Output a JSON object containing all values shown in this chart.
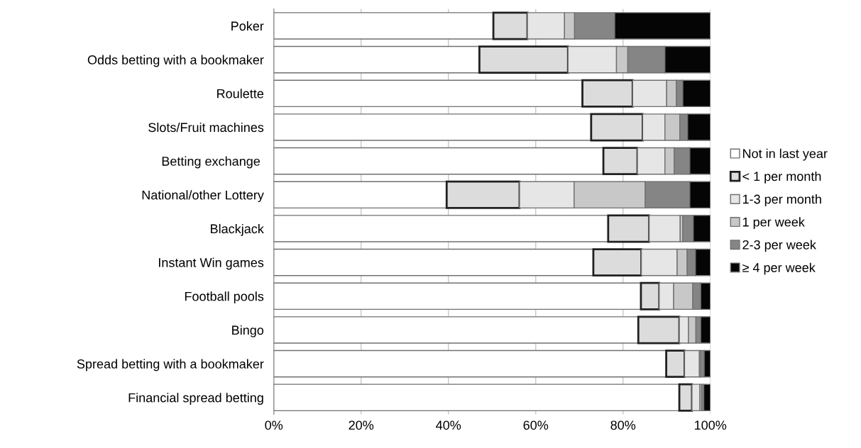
{
  "chart_data": {
    "type": "bar",
    "orientation": "horizontal",
    "stacked": true,
    "categories": [
      "Poker",
      "Odds betting with a bookmaker",
      "Roulette",
      "Slots/Fruit machines",
      "Betting exchange ",
      "National/other Lottery",
      "Blackjack",
      "Instant Win games",
      "Football pools",
      "Bingo",
      "Spread betting with a bookmaker",
      "Financial spread betting"
    ],
    "series": [
      {
        "name": "Not in last year",
        "color": "#ffffff",
        "values": [
          50.3,
          47.1,
          70.7,
          72.7,
          75.5,
          39.6,
          76.6,
          73.2,
          84.1,
          83.5,
          89.9,
          92.9
        ]
      },
      {
        "name": "< 1 per month",
        "color": "#dcdcdc",
        "values": [
          7.8,
          20.3,
          11.5,
          11.8,
          7.8,
          16.7,
          9.4,
          11.0,
          4.2,
          9.4,
          4.2,
          2.9
        ]
      },
      {
        "name": "1-3 per month",
        "color": "#e6e6e6",
        "values": [
          8.5,
          11.1,
          7.8,
          5.1,
          6.3,
          12.5,
          7.1,
          8.2,
          3.3,
          2.1,
          3.4,
          1.8
        ]
      },
      {
        "name": "1 per week",
        "color": "#c8c8c8",
        "values": [
          2.3,
          2.6,
          2.2,
          3.4,
          2.1,
          16.3,
          0.6,
          2.3,
          4.4,
          1.7,
          0.3,
          0.4
        ]
      },
      {
        "name": "2-3 per week",
        "color": "#858585",
        "values": [
          9.2,
          8.5,
          1.5,
          1.8,
          3.6,
          10.2,
          2.4,
          1.9,
          1.8,
          1.1,
          0.8,
          0.5
        ]
      },
      {
        "name": "≥ 4 per week",
        "color": "#050505",
        "values": [
          21.9,
          10.4,
          6.3,
          5.2,
          4.7,
          4.7,
          3.9,
          3.4,
          2.2,
          2.2,
          1.4,
          1.5
        ]
      }
    ],
    "xlim": [
      0,
      100
    ],
    "xticks": [
      {
        "value": 0,
        "label": "0%"
      },
      {
        "value": 20,
        "label": "20%"
      },
      {
        "value": 40,
        "label": "40%"
      },
      {
        "value": 60,
        "label": "60%"
      },
      {
        "value": 80,
        "label": "80%"
      },
      {
        "value": 100,
        "label": "100%"
      }
    ],
    "grid": "x",
    "legend": "right"
  }
}
